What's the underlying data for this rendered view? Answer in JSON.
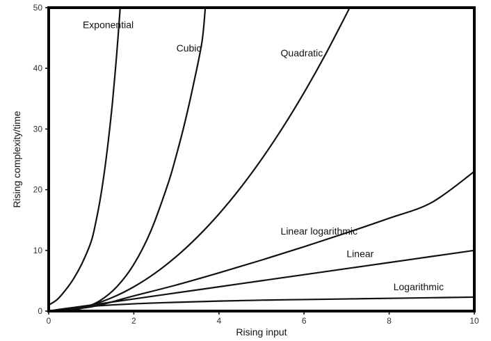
{
  "chart_data": {
    "type": "line",
    "title": "",
    "xlabel": "Rising input",
    "ylabel": "Rising complexity/time",
    "xlim": [
      0,
      10
    ],
    "ylim": [
      0,
      50
    ],
    "xticks": [
      0,
      2,
      4,
      6,
      8,
      10
    ],
    "yticks": [
      0,
      10,
      20,
      30,
      40,
      50
    ],
    "grid": false,
    "colors": {
      "line": "#111111",
      "frame": "#000000",
      "background": "#ffffff"
    },
    "series": [
      {
        "key": "exponential",
        "name": "Exponential",
        "x": [
          0,
          0.2,
          0.4,
          0.6,
          0.8,
          1.0,
          1.1,
          1.2,
          1.3,
          1.4,
          1.5,
          1.6,
          1.68
        ],
        "y": [
          1.0,
          1.9,
          3.5,
          5.5,
          8.1,
          11.5,
          14.4,
          18.0,
          22.5,
          28.0,
          34.5,
          42.5,
          50
        ]
      },
      {
        "key": "cubic",
        "name": "Cubic",
        "x": [
          0,
          0.4,
          0.8,
          1.2,
          1.6,
          2.0,
          2.4,
          2.8,
          3.0,
          3.2,
          3.4,
          3.6,
          3.68
        ],
        "y": [
          0,
          0.1,
          0.5,
          1.7,
          4.0,
          7.7,
          13.2,
          20.9,
          25.7,
          31.1,
          37.3,
          44.3,
          50
        ]
      },
      {
        "key": "quadratic",
        "name": "Quadratic",
        "x": [
          0,
          0.5,
          1.0,
          1.5,
          2.0,
          2.5,
          3.0,
          3.5,
          4.0,
          4.5,
          5.0,
          5.5,
          6.0,
          6.5,
          7.0,
          7.07
        ],
        "y": [
          0,
          0.25,
          1.0,
          2.25,
          4.0,
          6.25,
          9.0,
          12.25,
          16.0,
          20.25,
          25.0,
          30.25,
          36.0,
          42.25,
          49.0,
          50
        ]
      },
      {
        "key": "linear_logarithmic",
        "name": "Linear logarithmic",
        "x": [
          0,
          1,
          2,
          3,
          4,
          5,
          6,
          7,
          8,
          9,
          10
        ],
        "y": [
          0,
          0.7,
          2.5,
          4.3,
          6.3,
          8.4,
          10.6,
          12.9,
          15.3,
          17.9,
          23.0
        ]
      },
      {
        "key": "linear",
        "name": "Linear",
        "x": [
          0,
          1,
          2,
          3,
          4,
          5,
          6,
          7,
          8,
          9,
          10
        ],
        "y": [
          0,
          1,
          2,
          3,
          4,
          5,
          6,
          7,
          8,
          9,
          10
        ]
      },
      {
        "key": "logarithmic",
        "name": "Logarithmic",
        "x": [
          0,
          0.5,
          1,
          2,
          3,
          4,
          5,
          6,
          7,
          8,
          9,
          10
        ],
        "y": [
          0,
          0.5,
          0.8,
          1.2,
          1.45,
          1.65,
          1.8,
          1.9,
          2.0,
          2.1,
          2.2,
          2.3
        ]
      }
    ],
    "annotations": [
      {
        "series": "exponential",
        "text": "Exponential",
        "x": 0.8,
        "y": 46.6
      },
      {
        "series": "cubic",
        "text": "Cubic",
        "x": 3.0,
        "y": 42.8
      },
      {
        "series": "quadratic",
        "text": "Quadratic",
        "x": 5.45,
        "y": 42.0
      },
      {
        "series": "linear_logarithmic",
        "text": "Linear logarithmic",
        "x": 5.45,
        "y": 12.6
      },
      {
        "series": "linear",
        "text": "Linear",
        "x": 7.0,
        "y": 8.9
      },
      {
        "series": "logarithmic",
        "text": "Logarithmic",
        "x": 8.1,
        "y": 3.45
      }
    ]
  }
}
